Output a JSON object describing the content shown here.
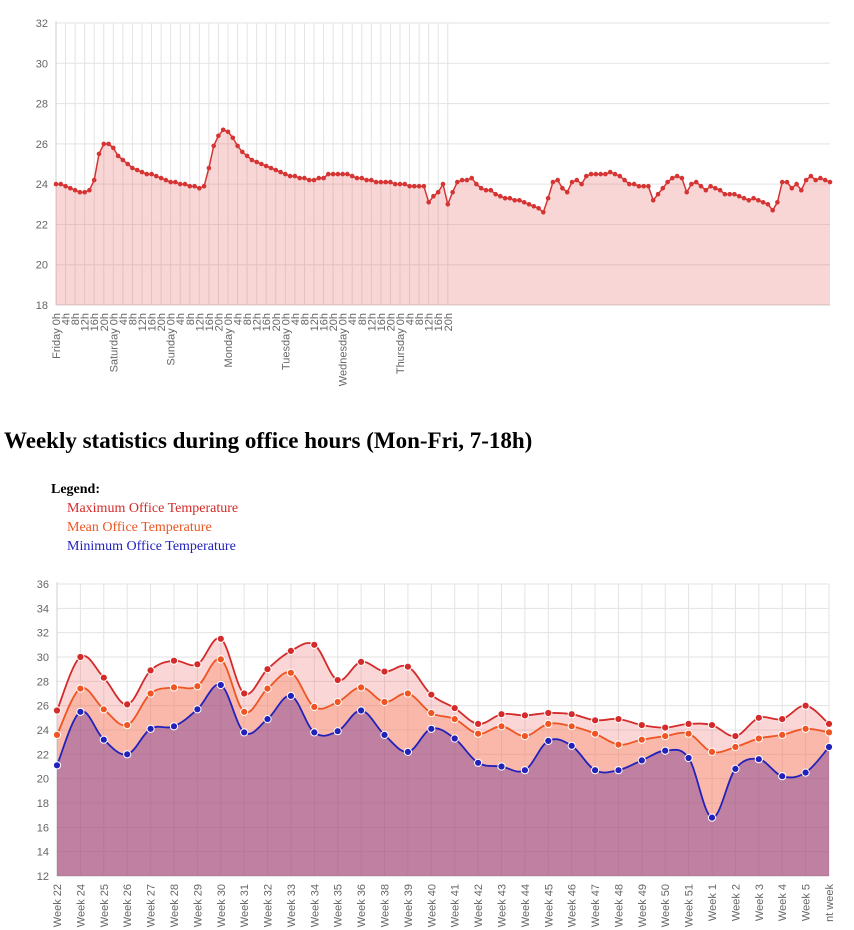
{
  "section": {
    "title": "Weekly statistics during office hours (Mon-Fri, 7-18h)",
    "legend_title": "Legend:",
    "legend_items": [
      {
        "label": "Maximum Office Temperature",
        "color": "#d42a2a"
      },
      {
        "label": "Mean Office Temperature",
        "color": "#ee5522"
      },
      {
        "label": "Minimum Office Temperature",
        "color": "#2222bb"
      }
    ]
  },
  "chart_data": [
    {
      "type": "area",
      "title": "",
      "xlabel": "",
      "ylabel": "",
      "ylim": [
        18,
        32
      ],
      "yticks": [
        18,
        20,
        22,
        24,
        26,
        28,
        30,
        32
      ],
      "grid": true,
      "hour_step": 2,
      "tick_labels": [
        "Friday 0h",
        "4h",
        "8h",
        "12h",
        "16h",
        "20h",
        "Saturday 0h",
        "4h",
        "8h",
        "12h",
        "16h",
        "20h",
        "Sunday 0h",
        "4h",
        "8h",
        "12h",
        "16h",
        "20h",
        "Monday 0h",
        "4h",
        "8h",
        "12h",
        "16h",
        "20h",
        "Tuesday 0h",
        "4h",
        "8h",
        "12h",
        "16h",
        "20h",
        "Wednesday 0h",
        "4h",
        "8h",
        "12h",
        "16h",
        "20h",
        "Thursday 0h",
        "4h",
        "8h",
        "12h",
        "16h",
        "20h"
      ],
      "series": [
        {
          "color": "#d63333",
          "fill": "rgba(230,90,90,0.25)",
          "values": [
            24.0,
            24.0,
            23.9,
            23.8,
            23.7,
            23.6,
            23.6,
            23.7,
            24.2,
            25.5,
            26.0,
            26.0,
            25.8,
            25.4,
            25.2,
            25.0,
            24.8,
            24.7,
            24.6,
            24.5,
            24.5,
            24.4,
            24.3,
            24.2,
            24.1,
            24.1,
            24.0,
            24.0,
            23.9,
            23.9,
            23.8,
            23.9,
            24.8,
            25.9,
            26.4,
            26.7,
            26.6,
            26.3,
            25.9,
            25.6,
            25.4,
            25.2,
            25.1,
            25.0,
            24.9,
            24.8,
            24.7,
            24.6,
            24.5,
            24.4,
            24.4,
            24.3,
            24.3,
            24.2,
            24.2,
            24.3,
            24.3,
            24.5,
            24.5,
            24.5,
            24.5,
            24.5,
            24.4,
            24.3,
            24.3,
            24.2,
            24.2,
            24.1,
            24.1,
            24.1,
            24.1,
            24.0,
            24.0,
            24.0,
            23.9,
            23.9,
            23.9,
            23.9,
            23.1,
            23.4,
            23.6,
            24.0,
            23.0,
            23.6,
            24.1,
            24.2,
            24.2,
            24.3,
            24.0,
            23.8,
            23.7,
            23.7,
            23.5,
            23.4,
            23.3,
            23.3,
            23.2,
            23.2,
            23.1,
            23.0,
            22.9,
            22.8,
            22.6,
            23.3,
            24.1,
            24.2,
            23.8,
            23.6,
            24.1,
            24.2,
            24.0,
            24.4,
            24.5,
            24.5,
            24.5,
            24.5,
            24.6,
            24.5,
            24.4,
            24.2,
            24.0,
            24.0,
            23.9,
            23.9,
            23.9,
            23.2,
            23.5,
            23.8,
            24.1,
            24.3,
            24.4,
            24.3,
            23.6,
            24.0,
            24.1,
            23.9,
            23.7,
            23.9,
            23.8,
            23.7,
            23.5,
            23.5,
            23.5,
            23.4,
            23.3,
            23.2,
            23.3,
            23.2,
            23.1,
            23.0,
            22.7,
            23.1,
            24.1,
            24.1,
            23.8,
            24.0,
            23.7,
            24.2,
            24.4,
            24.2,
            24.3,
            24.2,
            24.1
          ]
        }
      ]
    },
    {
      "type": "area",
      "title": "",
      "xlabel": "",
      "ylabel": "",
      "ylim": [
        12,
        36
      ],
      "yticks": [
        12,
        14,
        16,
        18,
        20,
        22,
        24,
        26,
        28,
        30,
        32,
        34,
        36
      ],
      "grid": true,
      "categories": [
        "Week 22",
        "Week 24",
        "Week 25",
        "Week 26",
        "Week 27",
        "Week 28",
        "Week 29",
        "Week 30",
        "Week 31",
        "Week 32",
        "Week 33",
        "Week 34",
        "Week 35",
        "Week 36",
        "Week 38",
        "Week 39",
        "Week 40",
        "Week 41",
        "Week 42",
        "Week 43",
        "Week 44",
        "Week 45",
        "Week 46",
        "Week 47",
        "Week 48",
        "Week 49",
        "Week 50",
        "Week 51",
        "Week 1",
        "Week 2",
        "Week 3",
        "Week 4",
        "Week 5",
        "nt week"
      ],
      "series": [
        {
          "name": "Maximum Office Temperature",
          "color": "#d42a2a",
          "fill": "rgba(240,120,120,0.30)",
          "values": [
            25.6,
            30.0,
            28.3,
            26.1,
            28.9,
            29.7,
            29.4,
            31.5,
            27.0,
            29.0,
            30.5,
            31.0,
            28.1,
            29.6,
            28.8,
            29.2,
            26.9,
            25.8,
            24.5,
            25.3,
            25.2,
            25.4,
            25.3,
            24.8,
            24.9,
            24.4,
            24.2,
            24.5,
            24.4,
            23.5,
            25.0,
            24.9,
            26.0,
            24.5
          ]
        },
        {
          "name": "Mean Office Temperature",
          "color": "#ee5522",
          "fill": "rgba(245,130,90,0.35)",
          "values": [
            23.6,
            27.4,
            25.7,
            24.4,
            27.0,
            27.5,
            27.6,
            29.8,
            25.5,
            27.4,
            28.7,
            25.9,
            26.3,
            27.5,
            26.3,
            27.0,
            25.4,
            24.9,
            23.7,
            24.3,
            23.5,
            24.5,
            24.3,
            23.7,
            22.8,
            23.2,
            23.5,
            23.7,
            22.2,
            22.6,
            23.3,
            23.6,
            24.1,
            23.8
          ]
        },
        {
          "name": "Minimum Office Temperature",
          "color": "#2222bb",
          "fill": "rgba(120,60,150,0.45)",
          "values": [
            21.1,
            25.5,
            23.2,
            22.0,
            24.1,
            24.3,
            25.7,
            27.7,
            23.8,
            24.9,
            26.8,
            23.8,
            23.9,
            25.6,
            23.6,
            22.2,
            24.1,
            23.3,
            21.3,
            21.0,
            20.7,
            23.1,
            22.7,
            20.7,
            20.7,
            21.5,
            22.3,
            21.7,
            16.8,
            20.8,
            21.6,
            20.2,
            20.5,
            22.6
          ]
        }
      ]
    }
  ]
}
